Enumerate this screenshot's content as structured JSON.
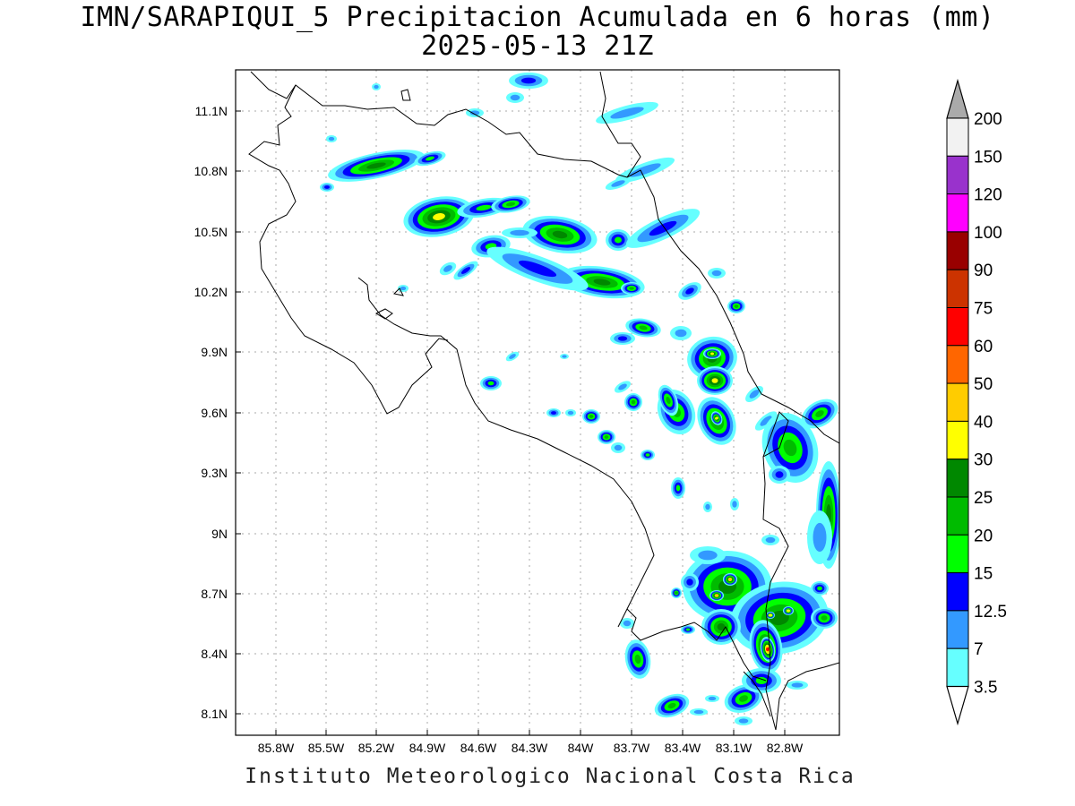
{
  "title_line1": "IMN/SARAPIQUI_5 Precipitacion Acumulada en 6 horas (mm)",
  "title_line2": "2025-05-13 21Z",
  "footer": "Instituto Meteorologico Nacional Costa Rica",
  "map": {
    "lon_ticks": [
      "85.8W",
      "85.5W",
      "85.2W",
      "84.9W",
      "84.6W",
      "84.3W",
      "84W",
      "83.7W",
      "83.4W",
      "83.1W",
      "82.8W"
    ],
    "lat_ticks": [
      "11.1N",
      "10.8N",
      "10.5N",
      "10.2N",
      "9.9N",
      "9.6N",
      "9.3N",
      "9N",
      "8.7N",
      "8.4N",
      "8.1N"
    ]
  },
  "colorbar": {
    "labels": [
      "200",
      "150",
      "120",
      "100",
      "90",
      "75",
      "60",
      "50",
      "40",
      "30",
      "25",
      "20",
      "15",
      "12.5",
      "7",
      "3.5"
    ],
    "colors": [
      "#f2f2f2",
      "#9932cc",
      "#ff00ff",
      "#990000",
      "#cc3300",
      "#ff0000",
      "#ff6600",
      "#ffcc00",
      "#ffff00",
      "#008800",
      "#00bb00",
      "#00ff00",
      "#0000ff",
      "#3399ff",
      "#66ffff"
    ],
    "top_color": "#aaaaaa"
  },
  "precip_colors": {
    "c3_5": "#66ffff",
    "c7": "#3399ff",
    "c12_5": "#0000ff",
    "c15": "#00ff00",
    "c20": "#00bb00",
    "c25": "#008800",
    "c30": "#ffff00",
    "c40": "#ffcc00",
    "c60": "#ff0000"
  }
}
